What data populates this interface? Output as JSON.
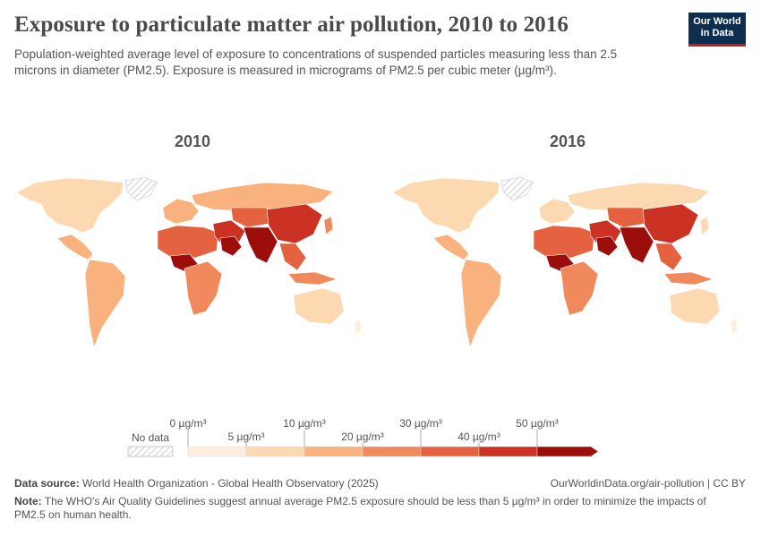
{
  "title": "Exposure to particulate matter air pollution, 2010 to 2016",
  "subtitle": "Population-weighted average level of exposure to concentrations of suspended particles measuring less than 2.5 microns in diameter (PM2.5). Exposure is measured in micrograms of PM2.5 per cubic meter (µg/m³).",
  "logo": {
    "line1": "Our World",
    "line2": "in Data"
  },
  "maps": [
    {
      "year": "2010"
    },
    {
      "year": "2016"
    }
  ],
  "legend": {
    "no_data_label": "No data",
    "no_data_color": "#e0e0e0",
    "unit": "µg/m³",
    "bins": [
      {
        "label": "0 µg/m³",
        "color": "#fdeedd"
      },
      {
        "label": "5 µg/m³",
        "color": "#fcd9b0"
      },
      {
        "label": "10 µg/m³",
        "color": "#f9b27d"
      },
      {
        "label": "20 µg/m³",
        "color": "#f08a5c"
      },
      {
        "label": "30 µg/m³",
        "color": "#e4623f"
      },
      {
        "label": "40 µg/m³",
        "color": "#cc3223"
      },
      {
        "label": "50 µg/m³",
        "color": "#9c0e0c"
      }
    ]
  },
  "colors": {
    "low": "#fdeedd",
    "mid_low": "#fcd9b0",
    "mid": "#f9b27d",
    "mid_high": "#f08a5c",
    "high": "#e4623f",
    "very_high": "#cc3223",
    "extreme": "#9c0e0c",
    "logo_bg": "#0d2e4f",
    "logo_accent": "#c41c22"
  },
  "footer": {
    "source_label": "Data source:",
    "source_text": "World Health Organization - Global Health Observatory (2025)",
    "url": "OurWorldinData.org/air-pollution | CC BY",
    "note_label": "Note:",
    "note_text": "The WHO's Air Quality Guidelines suggest annual average PM2.5 exposure should be less than 5 µg/m³ in order to minimize the impacts of PM2.5 on human health."
  }
}
